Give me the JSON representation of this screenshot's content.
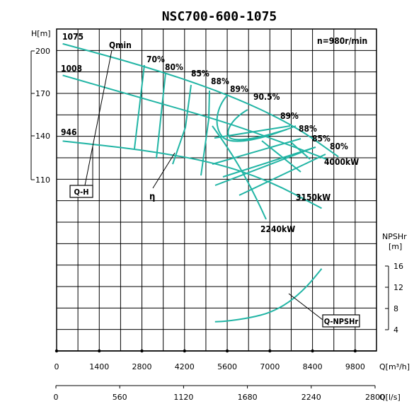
{
  "chart_data": {
    "type": "line",
    "title": "NSC700-600-1075",
    "speed_label": "n=980r/min",
    "x_axis_flow_m3h": {
      "label": "Q[m³/h]",
      "range": [
        0,
        10500
      ],
      "ticks": [
        "0",
        "1400",
        "2800",
        "4200",
        "5600",
        "7000",
        "8400",
        "9800"
      ]
    },
    "x_axis_flow_ls": {
      "label": "Q[l/s]",
      "ticks": [
        "0",
        "560",
        "1120",
        "1680",
        "2240",
        "2800"
      ]
    },
    "head_axis": {
      "label": "H[m]",
      "ticks": [
        "200",
        "170",
        "140",
        "110"
      ]
    },
    "npsh_axis": {
      "label_line1": "NPSHr",
      "label_line2": "[m]",
      "ticks": [
        "16",
        "12",
        "8",
        "4"
      ]
    },
    "impeller_labels": [
      "1075",
      "1008",
      "946"
    ],
    "series": [
      {
        "name": "1075",
        "x": [
          200,
          2800,
          5600,
          7800,
          9250
        ],
        "y": [
          205,
          190,
          170,
          148,
          126
        ]
      },
      {
        "name": "1008",
        "x": [
          200,
          2800,
          5600,
          7800,
          8900
        ],
        "y": [
          183,
          167,
          150,
          133,
          124
        ]
      },
      {
        "name": "946",
        "x": [
          200,
          2800,
          5200,
          7000,
          8700
        ],
        "y": [
          137,
          131,
          122,
          109,
          90
        ]
      }
    ],
    "efficiency_labels": [
      "70%",
      "80%",
      "85%",
      "88%",
      "89%",
      "90.5%",
      "89%",
      "88%",
      "85%",
      "80%"
    ],
    "power_labels": [
      "4000kW",
      "3150kW",
      "2240kW"
    ],
    "other_labels": {
      "qmin": "Qmin",
      "qh": "Q-H",
      "eta": "η",
      "npsh_curve": "Q-NPSHr"
    },
    "npshr_curve": {
      "q": [
        5200,
        5600,
        6400,
        7000,
        7600,
        8200,
        8700
      ],
      "npsh": [
        5.5,
        5.6,
        6.3,
        7.2,
        9,
        12,
        15.5
      ]
    },
    "grid": true,
    "colors": {
      "curve": "#22b5a5",
      "grid": "#000000"
    }
  }
}
